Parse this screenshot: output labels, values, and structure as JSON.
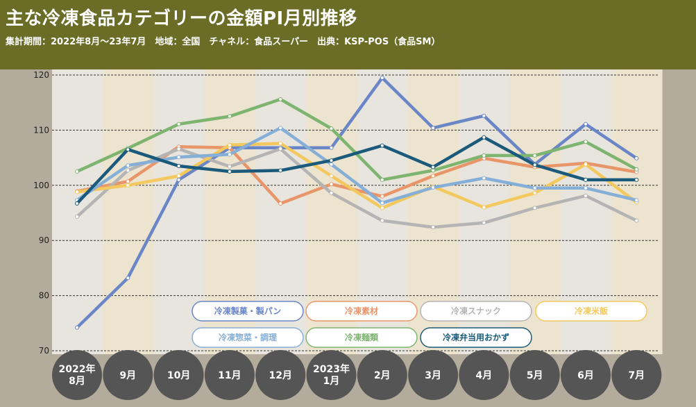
{
  "title": "主な冷凍食品カテゴリーの金額PI月別推移",
  "subtitle": "集計期間：2022年8月～23年7月　地域：全国　チャネル：食品スーパー　出典：KSP-POS（食品SM）",
  "colors": {
    "header_bg": "#6b6d26",
    "band_a": "#e8e4de",
    "band_b": "#ece4cf",
    "month_circle": "#555555"
  },
  "chart_data": {
    "type": "line",
    "title": "主な冷凍食品カテゴリーの金額PI月別推移",
    "xlabel": "",
    "ylabel": "",
    "ylim": [
      70,
      120
    ],
    "yticks": [
      70,
      80,
      90,
      100,
      110,
      120
    ],
    "grid": true,
    "categories": [
      [
        "2022年",
        "8月"
      ],
      [
        "9月"
      ],
      [
        "10月"
      ],
      [
        "11月"
      ],
      [
        "12月"
      ],
      [
        "2023年",
        "1月"
      ],
      [
        "2月"
      ],
      [
        "3月"
      ],
      [
        "4月"
      ],
      [
        "5月"
      ],
      [
        "6月"
      ],
      [
        "7月"
      ]
    ],
    "series": [
      {
        "name": "冷凍製菓・製パン",
        "color": "#6b86c6",
        "values": [
          74.2,
          83.2,
          101.0,
          106.8,
          106.8,
          106.8,
          119.5,
          110.4,
          112.6,
          103.8,
          111.1,
          104.9
        ]
      },
      {
        "name": "冷凍素材",
        "color": "#e8956a",
        "values": [
          98.9,
          100.7,
          107.0,
          106.8,
          96.7,
          100.2,
          98.0,
          101.7,
          104.9,
          103.3,
          104.0,
          102.4
        ]
      },
      {
        "name": "冷凍スナック",
        "color": "#b4b4b4",
        "values": [
          94.3,
          102.7,
          106.6,
          103.4,
          106.6,
          98.6,
          93.6,
          92.4,
          93.2,
          95.9,
          98.1,
          93.6
        ]
      },
      {
        "name": "冷凍米飯",
        "color": "#f3c85e",
        "values": [
          98.8,
          100.0,
          101.7,
          107.3,
          107.6,
          101.7,
          95.9,
          99.8,
          96.0,
          98.6,
          103.8,
          96.9
        ]
      },
      {
        "name": "冷凍惣菜・調理",
        "color": "#86afd8",
        "values": [
          97.3,
          103.6,
          105.1,
          105.6,
          110.4,
          103.8,
          96.8,
          99.6,
          101.3,
          99.5,
          99.5,
          97.3
        ]
      },
      {
        "name": "冷凍麺類",
        "color": "#7db46f",
        "values": [
          102.5,
          106.7,
          111.1,
          112.5,
          115.6,
          110.3,
          101.0,
          102.7,
          105.4,
          105.4,
          107.9,
          102.9
        ]
      },
      {
        "name": "冷凍弁当用おかず",
        "color": "#1b5a7a",
        "values": [
          96.7,
          106.5,
          103.5,
          102.5,
          102.7,
          104.5,
          107.2,
          103.3,
          108.7,
          103.7,
          101.0,
          101.0
        ]
      }
    ]
  }
}
